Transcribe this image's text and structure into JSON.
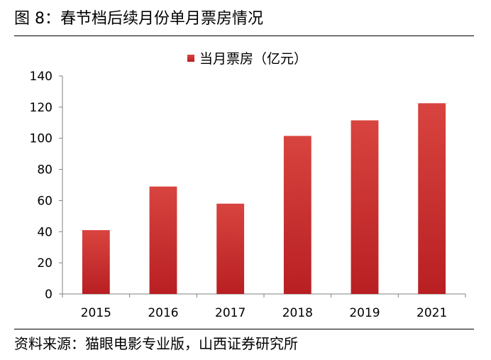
{
  "figure": {
    "title": "图 8：春节档后续月份单月票房情况",
    "source": "资料来源：猫眼电影专业版，山西证券研究所"
  },
  "colors": {
    "bar_top": "#d8443f",
    "bar_bottom": "#b81f22",
    "axis": "#808080"
  },
  "chart_data": {
    "type": "bar",
    "title": "",
    "xlabel": "",
    "ylabel": "",
    "categories": [
      "2015",
      "2016",
      "2017",
      "2018",
      "2019",
      "2021"
    ],
    "series": [
      {
        "name": "当月票房（亿元）",
        "values": [
          41,
          69,
          58,
          101.5,
          111.5,
          122.5
        ]
      }
    ],
    "ylim": [
      0,
      140
    ],
    "yticks": [
      0,
      20,
      40,
      60,
      80,
      100,
      120,
      140
    ],
    "grid": false,
    "legend": "top-center"
  }
}
